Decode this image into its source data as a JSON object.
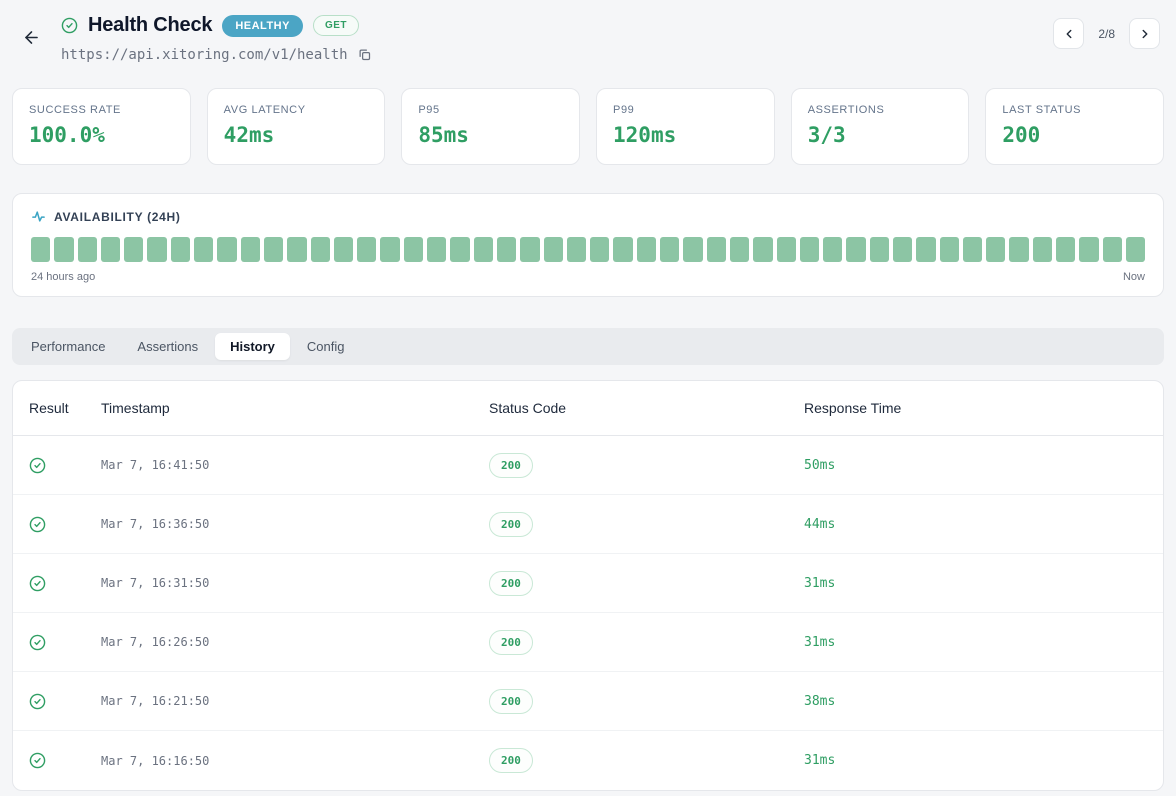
{
  "header": {
    "title": "Health Check",
    "status_badge": "HEALTHY",
    "method_badge": "GET",
    "url": "https://api.xitoring.com/v1/health",
    "pagination": "2/8"
  },
  "stats": [
    {
      "label": "SUCCESS RATE",
      "value": "100.0%"
    },
    {
      "label": "AVG LATENCY",
      "value": "42ms"
    },
    {
      "label": "P95",
      "value": "85ms"
    },
    {
      "label": "P99",
      "value": "120ms"
    },
    {
      "label": "ASSERTIONS",
      "value": "3/3"
    },
    {
      "label": "LAST STATUS",
      "value": "200"
    }
  ],
  "availability": {
    "title": "AVAILABILITY (24H)",
    "bar_count": 48,
    "left_label": "24 hours ago",
    "right_label": "Now"
  },
  "tabs": [
    {
      "label": "Performance",
      "active": false
    },
    {
      "label": "Assertions",
      "active": false
    },
    {
      "label": "History",
      "active": true
    },
    {
      "label": "Config",
      "active": false
    }
  ],
  "table": {
    "columns": [
      "Result",
      "Timestamp",
      "Status Code",
      "Response Time"
    ],
    "rows": [
      {
        "result": "success",
        "timestamp": "Mar 7, 16:41:50",
        "status_code": "200",
        "response_time": "50ms"
      },
      {
        "result": "success",
        "timestamp": "Mar 7, 16:36:50",
        "status_code": "200",
        "response_time": "44ms"
      },
      {
        "result": "success",
        "timestamp": "Mar 7, 16:31:50",
        "status_code": "200",
        "response_time": "31ms"
      },
      {
        "result": "success",
        "timestamp": "Mar 7, 16:26:50",
        "status_code": "200",
        "response_time": "31ms"
      },
      {
        "result": "success",
        "timestamp": "Mar 7, 16:21:50",
        "status_code": "200",
        "response_time": "38ms"
      },
      {
        "result": "success",
        "timestamp": "Mar 7, 16:16:50",
        "status_code": "200",
        "response_time": "31ms"
      }
    ]
  },
  "colors": {
    "accent_green": "#2f9e63",
    "bar_green": "#8cc5a4",
    "badge_teal": "#4ba5c5",
    "page_bg": "#f5f6f8"
  }
}
